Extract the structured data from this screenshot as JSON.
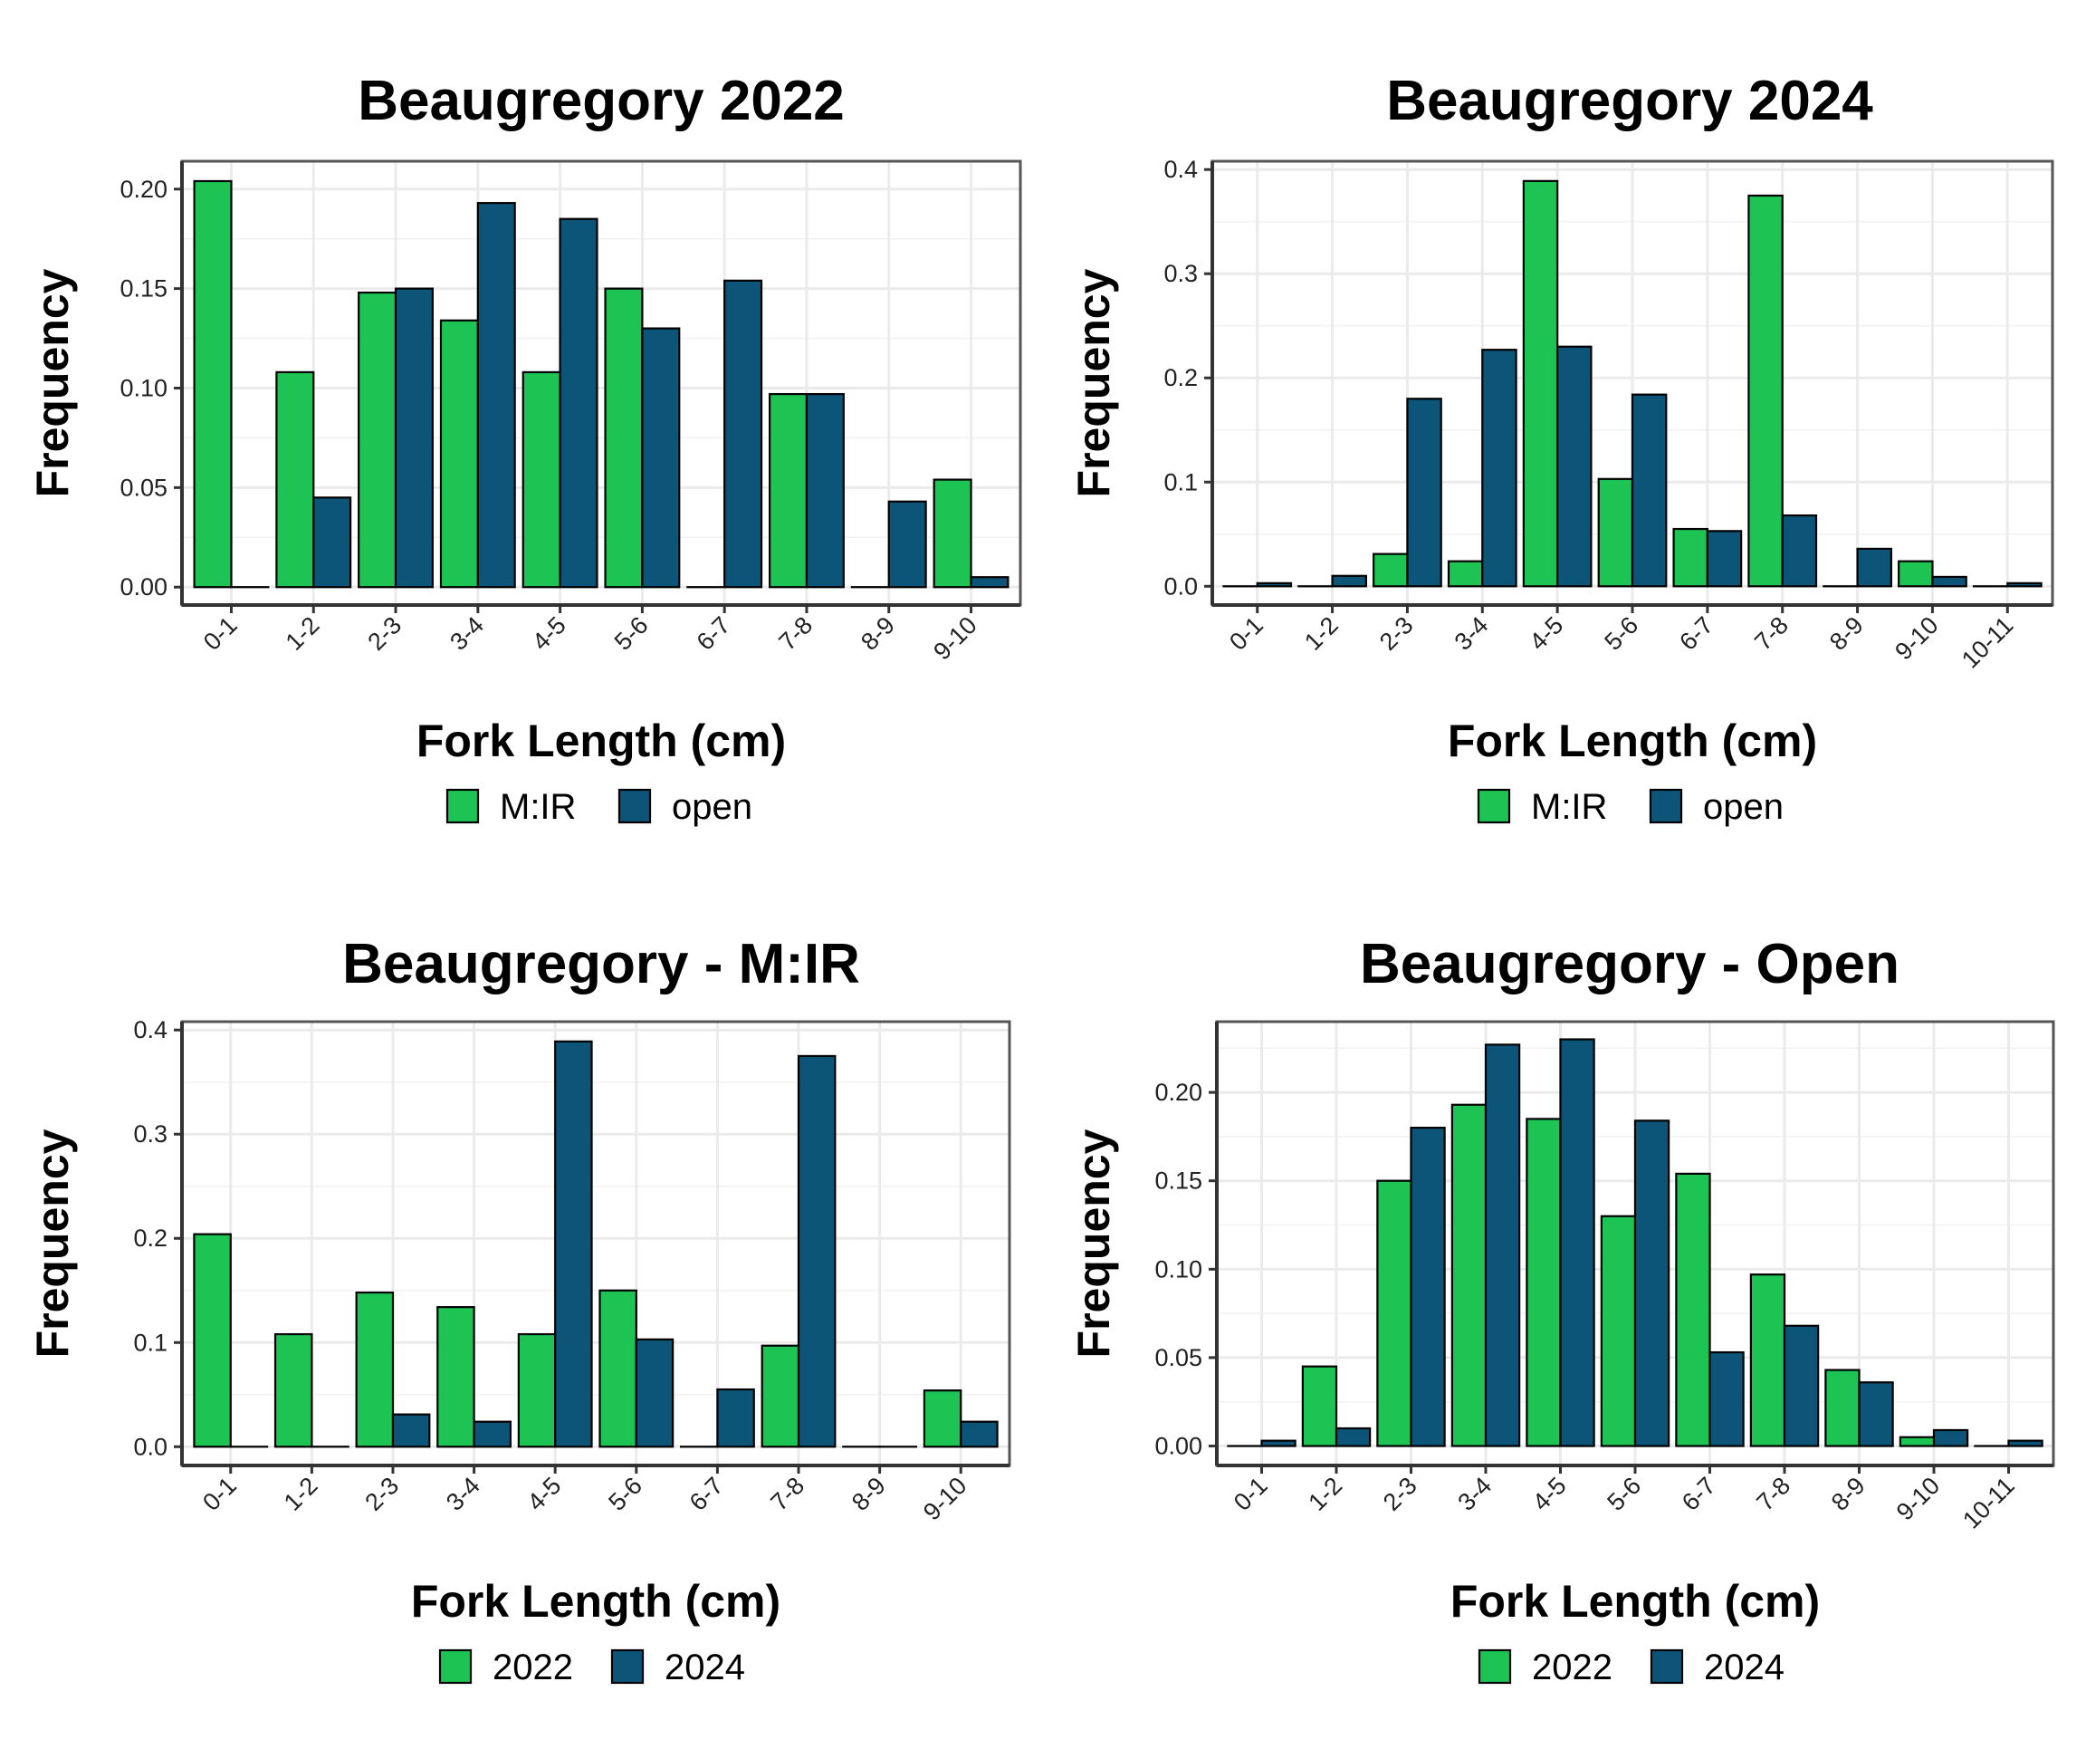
{
  "chart_data": [
    {
      "type": "bar",
      "title": "Beaugregory 2022",
      "xlabel": "Fork Length (cm)",
      "ylabel": "Frequency",
      "categories": [
        "0-1",
        "1-2",
        "2-3",
        "3-4",
        "4-5",
        "5-6",
        "6-7",
        "7-8",
        "8-9",
        "9-10"
      ],
      "series": [
        {
          "name": "M:IR",
          "color": "#1dc453",
          "values": [
            0.204,
            0.108,
            0.148,
            0.134,
            0.108,
            0.15,
            0.0,
            0.097,
            0.0,
            0.054
          ]
        },
        {
          "name": "open",
          "color": "#0d5578",
          "values": [
            0.0,
            0.045,
            0.15,
            0.193,
            0.185,
            0.13,
            0.154,
            0.097,
            0.043,
            0.005
          ]
        }
      ],
      "ylim": [
        -0.009,
        0.214
      ],
      "yticks": [
        0.0,
        0.05,
        0.1,
        0.15,
        0.2
      ],
      "ytick_labels": [
        "0.00",
        "0.05",
        "0.10",
        "0.15",
        "0.20"
      ],
      "legend": {
        "position": "bottom",
        "entries": [
          "M:IR",
          "open"
        ]
      },
      "grid": true
    },
    {
      "type": "bar",
      "title": "Beaugregory 2024",
      "xlabel": "Fork Length (cm)",
      "ylabel": "Frequency",
      "categories": [
        "0-1",
        "1-2",
        "2-3",
        "3-4",
        "4-5",
        "5-6",
        "6-7",
        "7-8",
        "8-9",
        "9-10",
        "10-11"
      ],
      "series": [
        {
          "name": "M:IR",
          "color": "#1dc453",
          "values": [
            0.0,
            0.0,
            0.031,
            0.024,
            0.389,
            0.103,
            0.055,
            0.375,
            0.0,
            0.024,
            0.0
          ]
        },
        {
          "name": "open",
          "color": "#0d5578",
          "values": [
            0.003,
            0.01,
            0.18,
            0.227,
            0.23,
            0.184,
            0.053,
            0.068,
            0.036,
            0.009,
            0.003
          ]
        }
      ],
      "ylim": [
        -0.018,
        0.408
      ],
      "yticks": [
        0.0,
        0.1,
        0.2,
        0.3,
        0.4
      ],
      "ytick_labels": [
        "0.0",
        "0.1",
        "0.2",
        "0.3",
        "0.4"
      ],
      "legend": {
        "position": "bottom",
        "entries": [
          "M:IR",
          "open"
        ]
      },
      "grid": true
    },
    {
      "type": "bar",
      "title": "Beaugregory - M:IR",
      "xlabel": "Fork Length (cm)",
      "ylabel": "Frequency",
      "categories": [
        "0-1",
        "1-2",
        "2-3",
        "3-4",
        "4-5",
        "5-6",
        "6-7",
        "7-8",
        "8-9",
        "9-10"
      ],
      "series": [
        {
          "name": "2022",
          "color": "#1dc453",
          "values": [
            0.204,
            0.108,
            0.148,
            0.134,
            0.108,
            0.15,
            0.0,
            0.097,
            0.0,
            0.054
          ]
        },
        {
          "name": "2024",
          "color": "#0d5578",
          "values": [
            0.0,
            0.0,
            0.031,
            0.024,
            0.389,
            0.103,
            0.055,
            0.375,
            0.0,
            0.024
          ]
        }
      ],
      "ylim": [
        -0.018,
        0.408
      ],
      "yticks": [
        0.0,
        0.1,
        0.2,
        0.3,
        0.4
      ],
      "ytick_labels": [
        "0.0",
        "0.1",
        "0.2",
        "0.3",
        "0.4"
      ],
      "legend": {
        "position": "bottom",
        "entries": [
          "2022",
          "2024"
        ]
      },
      "grid": true
    },
    {
      "type": "bar",
      "title": "Beaugregory - Open",
      "xlabel": "Fork Length (cm)",
      "ylabel": "Frequency",
      "categories": [
        "0-1",
        "1-2",
        "2-3",
        "3-4",
        "4-5",
        "5-6",
        "6-7",
        "7-8",
        "8-9",
        "9-10",
        "10-11"
      ],
      "series": [
        {
          "name": "2022",
          "color": "#1dc453",
          "values": [
            0.0,
            0.045,
            0.15,
            0.193,
            0.185,
            0.13,
            0.154,
            0.097,
            0.043,
            0.005,
            0.0
          ]
        },
        {
          "name": "2024",
          "color": "#0d5578",
          "values": [
            0.003,
            0.01,
            0.18,
            0.227,
            0.23,
            0.184,
            0.053,
            0.068,
            0.036,
            0.009,
            0.003
          ]
        }
      ],
      "ylim": [
        -0.011,
        0.24
      ],
      "yticks": [
        0.0,
        0.05,
        0.1,
        0.15,
        0.2
      ],
      "ytick_labels": [
        "0.00",
        "0.05",
        "0.10",
        "0.15",
        "0.20"
      ],
      "legend": {
        "position": "bottom",
        "entries": [
          "2022",
          "2024"
        ]
      },
      "grid": true
    }
  ]
}
